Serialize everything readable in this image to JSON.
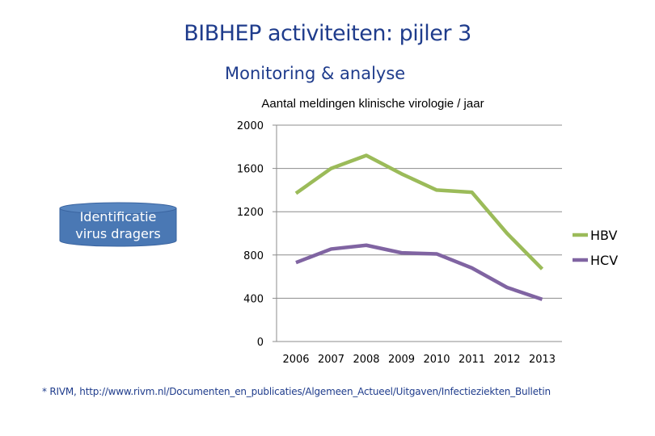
{
  "slide": {
    "title": "BIBHEP activiteiten: pijler 3",
    "subtitle": "Monitoring & analyse",
    "disk_label_line1": "Identificatie",
    "disk_label_line2": "virus dragers",
    "footnote": "* RIVM, http://www.rivm.nl/Documenten_en_publicaties/Algemeen_Actueel/Uitgaven/Infectieziekten_Bulletin",
    "colors": {
      "heading": "#1f3c8c",
      "disk": "#4a78b4"
    }
  },
  "chart_data": {
    "type": "line",
    "title": "Aantal meldingen klinische virologie / jaar",
    "xlabel": "",
    "ylabel": "",
    "categories": [
      "2006",
      "2007",
      "2008",
      "2009",
      "2010",
      "2011",
      "2012",
      "2013"
    ],
    "ylim": [
      0,
      2000
    ],
    "yticks": [
      "0",
      "400",
      "800",
      "1200",
      "1600",
      "2000"
    ],
    "grid": true,
    "legend": "right",
    "series": [
      {
        "name": "HBV",
        "color": "#9bbb59",
        "values": [
          1370,
          1600,
          1720,
          1550,
          1400,
          1380,
          1000,
          670
        ]
      },
      {
        "name": "HCV",
        "color": "#8064a2",
        "values": [
          730,
          855,
          890,
          820,
          810,
          680,
          500,
          390
        ]
      }
    ]
  }
}
